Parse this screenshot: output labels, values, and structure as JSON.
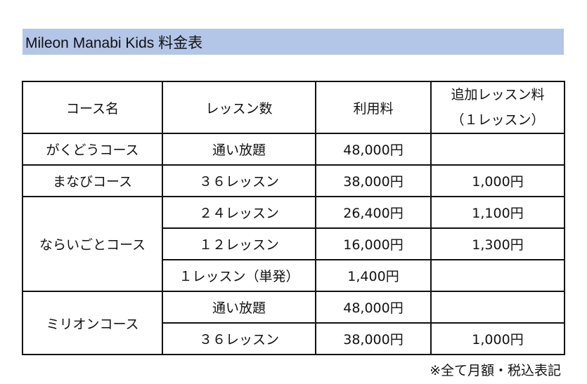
{
  "title": "Mileon Manabi Kids 料金表",
  "headers": {
    "course": "コース名",
    "lessons": "レッスン数",
    "fee": "利用料",
    "extra_line1": "追加レッスン料",
    "extra_line2": "（１レッスン）"
  },
  "rows": [
    {
      "course": "がくどうコース",
      "lessons": "通い放題",
      "fee": "48,000円",
      "extra": ""
    },
    {
      "course": "まなびコース",
      "lessons": "３６レッスン",
      "fee": "38,000円",
      "extra": "1,000円"
    },
    {
      "course": "ならいごとコース",
      "lessons": "２４レッスン",
      "fee": "26,400円",
      "extra": "1,100円"
    },
    {
      "course": "",
      "lessons": "１２レッスン",
      "fee": "16,000円",
      "extra": "1,300円"
    },
    {
      "course": "",
      "lessons": "１レッスン（単発）",
      "fee": "1,400円",
      "extra": ""
    },
    {
      "course": "ミリオンコース",
      "lessons": "通い放題",
      "fee": "48,000円",
      "extra": ""
    },
    {
      "course": "",
      "lessons": "３６レッスン",
      "fee": "38,000円",
      "extra": "1,000円"
    }
  ],
  "note": "※全て月額・税込表記"
}
